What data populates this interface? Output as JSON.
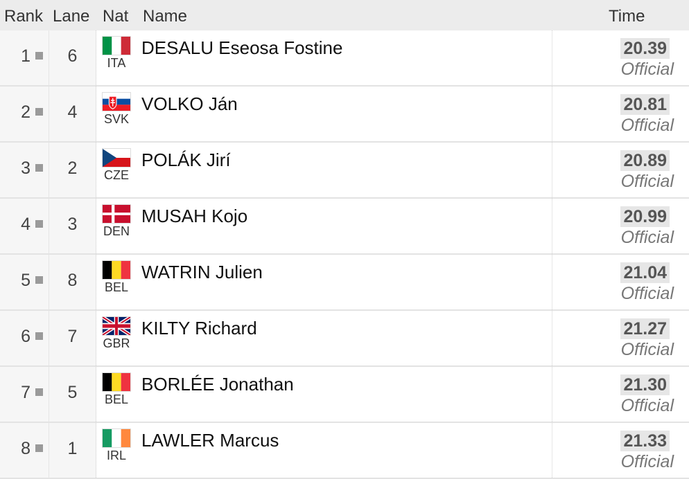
{
  "header": {
    "rank": "Rank",
    "lane": "Lane",
    "nat": "Nat",
    "name": "Name",
    "time": "Time"
  },
  "rows": [
    {
      "rank": "1",
      "lane": "6",
      "nat": "ITA",
      "flag": "flag-italy-icon",
      "name": "DESALU Eseosa Fostine",
      "time": "20.39",
      "status": "Official"
    },
    {
      "rank": "2",
      "lane": "4",
      "nat": "SVK",
      "flag": "flag-slovakia-icon",
      "name": "VOLKO Ján",
      "time": "20.81",
      "status": "Official"
    },
    {
      "rank": "3",
      "lane": "2",
      "nat": "CZE",
      "flag": "flag-czech-icon",
      "name": "POLÁK Jirí",
      "time": "20.89",
      "status": "Official"
    },
    {
      "rank": "4",
      "lane": "3",
      "nat": "DEN",
      "flag": "flag-denmark-icon",
      "name": "MUSAH Kojo",
      "time": "20.99",
      "status": "Official"
    },
    {
      "rank": "5",
      "lane": "8",
      "nat": "BEL",
      "flag": "flag-belgium-icon",
      "name": "WATRIN Julien",
      "time": "21.04",
      "status": "Official"
    },
    {
      "rank": "6",
      "lane": "7",
      "nat": "GBR",
      "flag": "flag-uk-icon",
      "name": "KILTY Richard",
      "time": "21.27",
      "status": "Official"
    },
    {
      "rank": "7",
      "lane": "5",
      "nat": "BEL",
      "flag": "flag-belgium-icon",
      "name": "BORLÉE Jonathan",
      "time": "21.30",
      "status": "Official"
    },
    {
      "rank": "8",
      "lane": "1",
      "nat": "IRL",
      "flag": "flag-ireland-icon",
      "name": "LAWLER Marcus",
      "time": "21.33",
      "status": "Official"
    }
  ],
  "colors": {
    "rank_square": "#9a9a9a",
    "row_bg": "#ffffff",
    "side_bg": "#f6f6f6",
    "header_bg": "#ececec"
  }
}
